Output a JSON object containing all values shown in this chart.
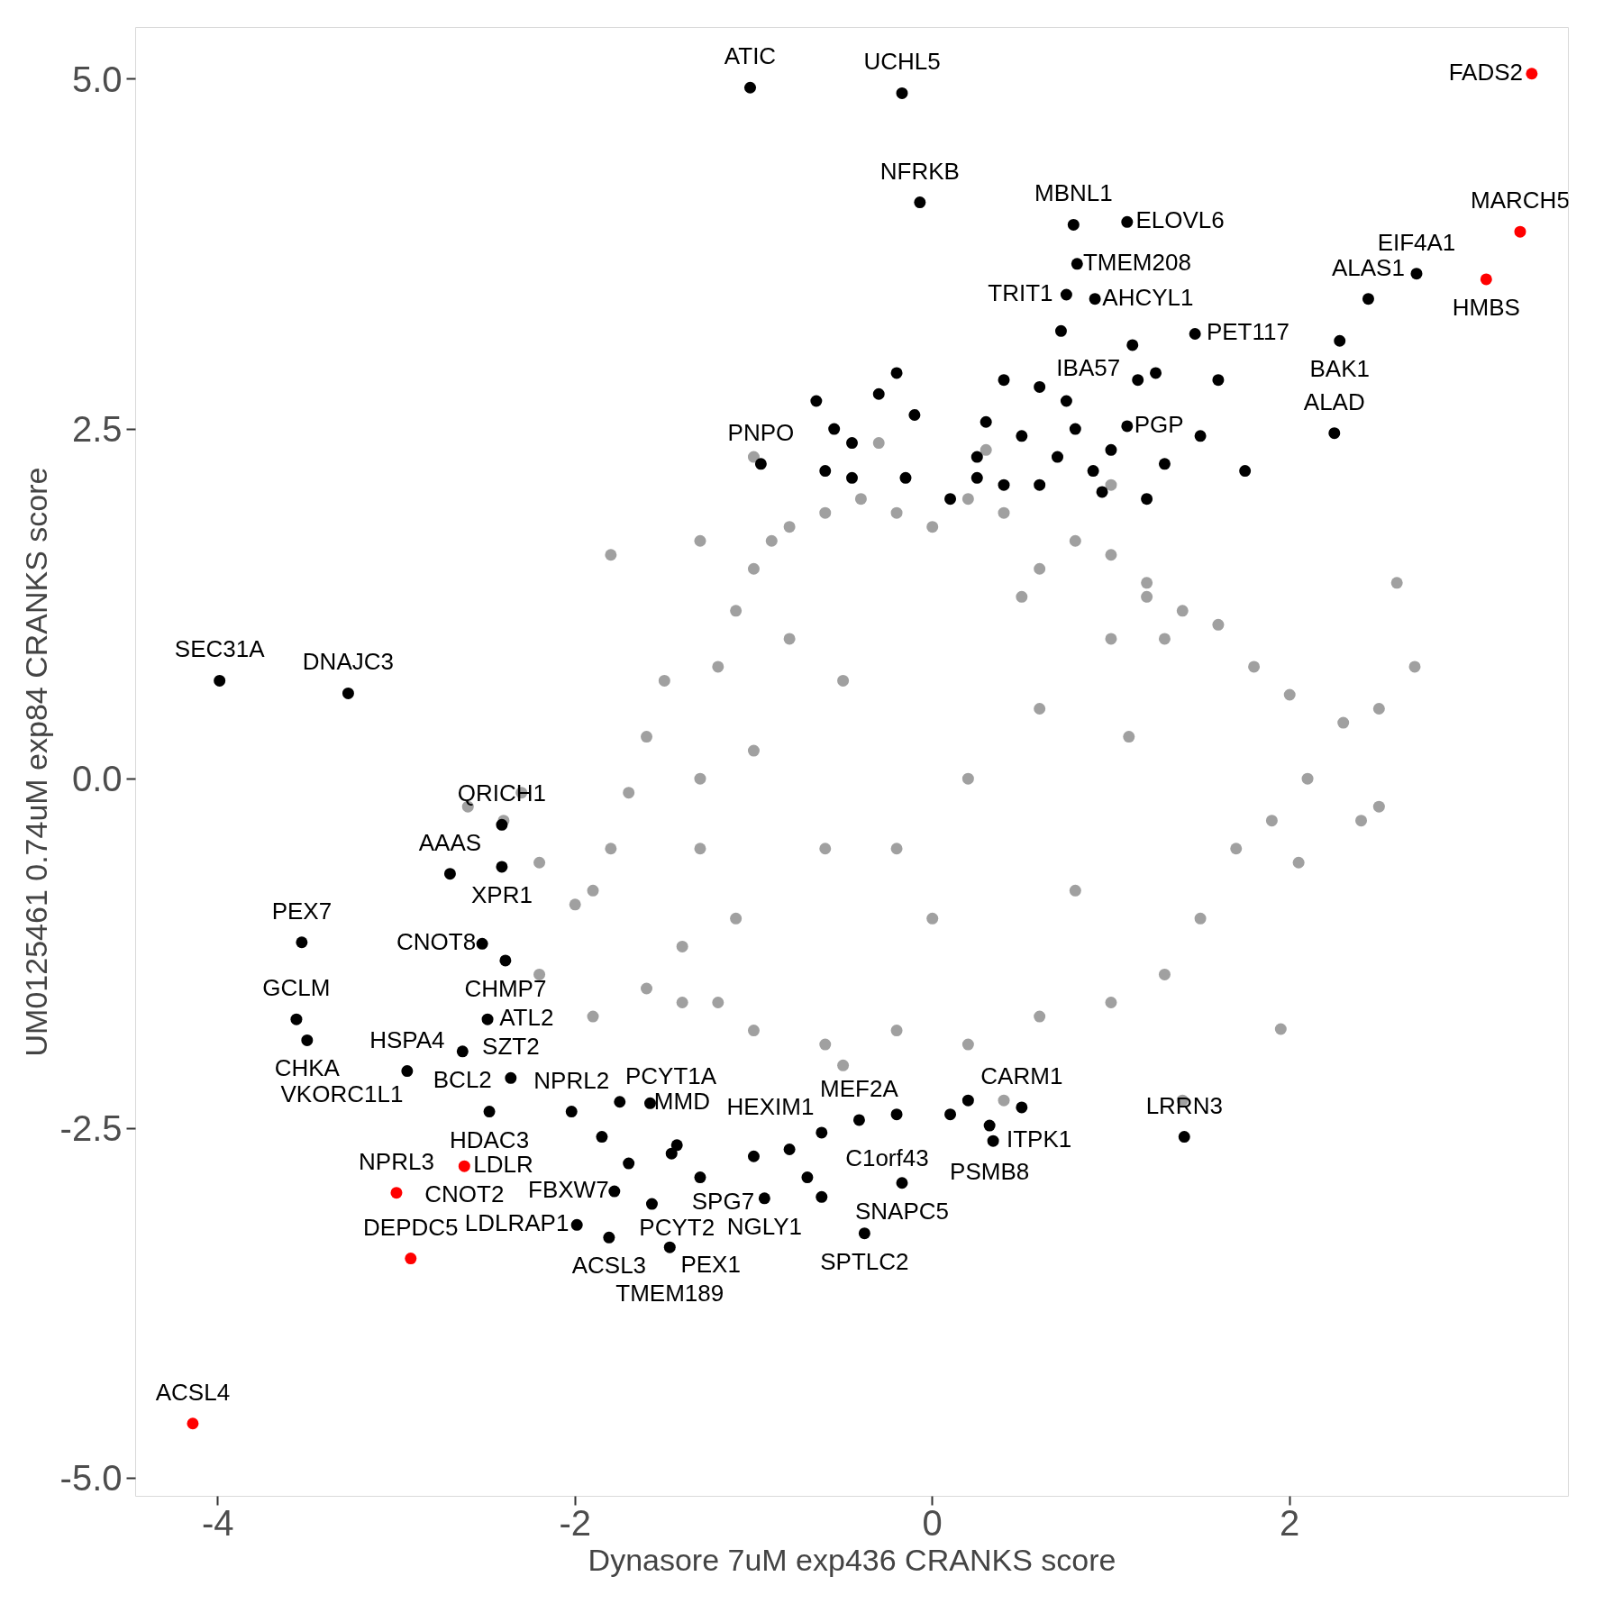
{
  "chart_data": {
    "type": "scatter",
    "xlabel": "Dynasore 7uM exp436 CRANKS score",
    "ylabel": "UM0125461 0.74uM exp84 CRANKS score",
    "xlim": [
      -4.46,
      3.56
    ],
    "ylim": [
      -5.13,
      5.37
    ],
    "xticks": [
      -4,
      -2,
      0,
      2
    ],
    "yticks": [
      {
        "value": 5,
        "label": "5.0"
      },
      {
        "value": 2.5,
        "label": "2.5"
      },
      {
        "value": 0,
        "label": "0.0"
      },
      {
        "value": -2.5,
        "label": "-2.5"
      },
      {
        "value": -5,
        "label": "-5.0"
      }
    ],
    "grid": false,
    "marker": "circle",
    "series": [
      {
        "color": "#a0a0a0",
        "x": [
          -1.3,
          -1.2,
          -1.1,
          -1.0,
          -0.9,
          -0.8,
          -0.6,
          -0.4,
          -0.2,
          0.0,
          0.2,
          0.4,
          0.6,
          0.8,
          1.0,
          1.2,
          1.3,
          -1.5,
          -1.6,
          -1.7,
          -1.8,
          -1.9,
          -2.0,
          -2.2,
          -2.4,
          -2.6,
          -1.4,
          -1.6,
          -1.2,
          -1.0,
          -0.6,
          -0.2,
          0.2,
          0.6,
          1.0,
          1.3,
          1.5,
          1.7,
          1.9,
          2.1,
          2.3,
          2.5,
          2.7,
          2.4,
          2.0,
          1.8,
          1.6,
          1.4,
          1.2,
          1.0,
          0.6,
          0.2,
          -0.2,
          -0.6,
          -1.0,
          -1.3,
          -0.8,
          0.0,
          0.8,
          1.1,
          -1.1,
          0.5,
          -0.5,
          -1.4,
          -2.2,
          1.95,
          2.5,
          2.05,
          1.0,
          -1.0,
          -0.3,
          0.3,
          -1.8,
          -1.3,
          0.4,
          1.4,
          -0.5,
          -2.3,
          -1.9,
          2.6
        ],
        "values": [
          0.0,
          0.8,
          1.2,
          1.5,
          1.7,
          1.8,
          1.9,
          2.0,
          1.9,
          1.8,
          2.0,
          1.9,
          1.5,
          1.7,
          1.6,
          1.4,
          1.0,
          0.7,
          0.3,
          -0.1,
          -0.5,
          -0.8,
          -0.9,
          -0.6,
          -0.3,
          -0.2,
          -1.2,
          -1.5,
          -1.6,
          -1.8,
          -1.9,
          -1.8,
          -1.9,
          -1.7,
          -1.6,
          -1.4,
          -1.0,
          -0.5,
          -0.3,
          0.0,
          0.4,
          0.5,
          0.8,
          -0.3,
          0.6,
          0.8,
          1.1,
          1.2,
          1.3,
          1.0,
          0.5,
          0.0,
          -0.5,
          -0.5,
          0.2,
          -0.5,
          1.0,
          -1.0,
          -0.8,
          0.3,
          -1.0,
          1.3,
          0.7,
          -1.6,
          -1.4,
          -1.79,
          -0.2,
          -0.6,
          2.1,
          2.3,
          2.4,
          2.35,
          1.6,
          1.7,
          -2.3,
          -2.3,
          -2.05,
          -0.1,
          -1.7,
          1.4
        ]
      },
      {
        "color": "#000000",
        "x": [
          -1.02,
          -0.17,
          -0.07,
          0.79,
          1.09,
          0.81,
          0.75,
          0.91,
          1.47,
          2.71,
          2.44,
          2.28,
          1.12,
          1.09,
          2.25,
          -0.96,
          -3.99,
          -3.27,
          -2.41,
          -2.41,
          -2.7,
          -3.53,
          -2.52,
          -2.39,
          -2.49,
          -3.56,
          -3.5,
          -2.63,
          -2.94,
          -2.48,
          -2.36,
          -2.02,
          -1.75,
          -1.58,
          -1.43,
          -1.46,
          -1.78,
          -1.85,
          -1.99,
          -1.81,
          -1.57,
          -1.47,
          -0.94,
          -0.62,
          -0.38,
          -0.17,
          -0.62,
          -0.41,
          0.5,
          0.32,
          0.34,
          1.41,
          -0.65,
          -0.55,
          -0.45,
          -0.3,
          -0.2,
          -0.1,
          0.25,
          0.3,
          0.4,
          0.5,
          0.6,
          0.7,
          0.8,
          0.9,
          1.0,
          1.2,
          1.3,
          1.5,
          1.75,
          1.6,
          -0.6,
          -0.45,
          0.1,
          0.4,
          0.6,
          0.95,
          1.25,
          1.15,
          0.75,
          0.25,
          -0.15,
          0.72,
          -1.3,
          -1.0,
          -0.8,
          -0.7,
          -0.2,
          0.1,
          0.2,
          -1.7
        ],
        "values": [
          4.94,
          4.9,
          4.12,
          3.96,
          3.98,
          3.68,
          3.46,
          3.43,
          3.18,
          3.61,
          3.43,
          3.13,
          3.1,
          2.52,
          2.47,
          2.25,
          0.7,
          0.61,
          -0.33,
          -0.63,
          -0.68,
          -1.17,
          -1.18,
          -1.3,
          -1.72,
          -1.72,
          -1.87,
          -1.95,
          -2.09,
          -2.38,
          -2.14,
          -2.38,
          -2.31,
          -2.32,
          -2.62,
          -2.68,
          -2.95,
          -2.56,
          -3.19,
          -3.28,
          -3.04,
          -3.35,
          -3.0,
          -2.99,
          -3.25,
          -2.89,
          -2.53,
          -2.44,
          -2.35,
          -2.48,
          -2.59,
          -2.56,
          2.7,
          2.5,
          2.4,
          2.75,
          2.9,
          2.6,
          2.3,
          2.55,
          2.85,
          2.45,
          2.8,
          2.3,
          2.5,
          2.2,
          2.35,
          2.0,
          2.25,
          2.45,
          2.2,
          2.85,
          2.2,
          2.15,
          2.0,
          2.1,
          2.1,
          2.05,
          2.9,
          2.85,
          2.7,
          2.15,
          2.15,
          3.2,
          -2.85,
          -2.7,
          -2.65,
          -2.85,
          -2.4,
          -2.4,
          -2.3,
          -2.75
        ]
      },
      {
        "color": "#ff0000",
        "x": [
          3.355,
          3.29,
          3.1,
          -2.62,
          -3.0,
          -2.92,
          -4.14
        ],
        "values": [
          5.04,
          3.91,
          3.57,
          -2.77,
          -2.96,
          -3.43,
          -4.61
        ]
      }
    ],
    "annotations": [
      {
        "text": "ATIC",
        "x": -1.02,
        "y": 4.94
      },
      {
        "text": "UCHL5",
        "x": -0.17,
        "y": 4.9
      },
      {
        "text": "NFRKB",
        "x": -0.07,
        "y": 4.12
      },
      {
        "text": "MBNL1",
        "x": 0.79,
        "y": 3.96
      },
      {
        "text": "ELOVL6",
        "x": 1.09,
        "y": 3.98
      },
      {
        "text": "TMEM208",
        "x": 0.81,
        "y": 3.68
      },
      {
        "text": "TRIT1",
        "x": 0.75,
        "y": 3.46
      },
      {
        "text": "AHCYL1",
        "x": 0.91,
        "y": 3.43
      },
      {
        "text": "PET117",
        "x": 1.47,
        "y": 3.18
      },
      {
        "text": "EIF4A1",
        "x": 2.71,
        "y": 3.61
      },
      {
        "text": "ALAS1",
        "x": 2.44,
        "y": 3.43
      },
      {
        "text": "BAK1",
        "x": 2.28,
        "y": 3.13
      },
      {
        "text": "IBA57",
        "x": 1.12,
        "y": 3.1
      },
      {
        "text": "PGP",
        "x": 1.09,
        "y": 2.52
      },
      {
        "text": "ALAD",
        "x": 2.25,
        "y": 2.47
      },
      {
        "text": "PNPO",
        "x": -0.96,
        "y": 2.25
      },
      {
        "text": "SEC31A",
        "x": -3.99,
        "y": 0.7
      },
      {
        "text": "DNAJC3",
        "x": -3.27,
        "y": 0.61
      },
      {
        "text": "QRICH1",
        "x": -2.41,
        "y": -0.33
      },
      {
        "text": "XPR1",
        "x": -2.41,
        "y": -0.63
      },
      {
        "text": "AAAS",
        "x": -2.7,
        "y": -0.68
      },
      {
        "text": "PEX7",
        "x": -3.53,
        "y": -1.17
      },
      {
        "text": "CNOT8",
        "x": -2.52,
        "y": -1.18
      },
      {
        "text": "CHMP7",
        "x": -2.39,
        "y": -1.3
      },
      {
        "text": "ATL2",
        "x": -2.49,
        "y": -1.72
      },
      {
        "text": "GCLM",
        "x": -3.56,
        "y": -1.72
      },
      {
        "text": "CHKA",
        "x": -3.5,
        "y": -1.87
      },
      {
        "text": "BCL2",
        "x": -2.63,
        "y": -1.95
      },
      {
        "text": "HSPA4",
        "x": -2.94,
        "y": -2.09
      },
      {
        "text": "VKORC1L1",
        "x": -2.94,
        "y": -2.09
      },
      {
        "text": "HDAC3",
        "x": -2.48,
        "y": -2.38
      },
      {
        "text": "SZT2",
        "x": -2.36,
        "y": -2.14
      },
      {
        "text": "NPRL2",
        "x": -2.02,
        "y": -2.38
      },
      {
        "text": "PCYT1A",
        "x": -1.75,
        "y": -2.31
      },
      {
        "text": "MMD",
        "x": -1.58,
        "y": -2.32
      },
      {
        "text": "PCYT2",
        "x": -1.43,
        "y": -2.62
      },
      {
        "text": "SPG7",
        "x": -1.46,
        "y": -2.68
      },
      {
        "text": "FBXW7",
        "x": -1.78,
        "y": -2.95
      },
      {
        "text": "CNOT2",
        "x": -2.62,
        "y": -2.77
      },
      {
        "text": "LDLRAP1",
        "x": -1.99,
        "y": -3.19
      },
      {
        "text": "ACSL3",
        "x": -1.81,
        "y": -3.28
      },
      {
        "text": "PEX1",
        "x": -1.57,
        "y": -3.04
      },
      {
        "text": "TMEM189",
        "x": -1.47,
        "y": -3.35
      },
      {
        "text": "NGLY1",
        "x": -0.94,
        "y": -3.0
      },
      {
        "text": "C1orf43",
        "x": -0.62,
        "y": -2.99
      },
      {
        "text": "SPTLC2",
        "x": -0.38,
        "y": -3.25
      },
      {
        "text": "SNAPC5",
        "x": -0.17,
        "y": -2.89
      },
      {
        "text": "HEXIM1",
        "x": -0.62,
        "y": -2.53
      },
      {
        "text": "MEF2A",
        "x": -0.41,
        "y": -2.44
      },
      {
        "text": "CARM1",
        "x": 0.5,
        "y": -2.35
      },
      {
        "text": "PSMB8",
        "x": 0.32,
        "y": -2.48
      },
      {
        "text": "ITPK1",
        "x": 0.34,
        "y": -2.59
      },
      {
        "text": "LRRN3",
        "x": 1.41,
        "y": -2.56
      },
      {
        "text": "FADS2",
        "x": 3.355,
        "y": 5.04
      },
      {
        "text": "MARCH5",
        "x": 3.29,
        "y": 3.91
      },
      {
        "text": "HMBS",
        "x": 3.1,
        "y": 3.57
      },
      {
        "text": "LDLR",
        "x": -2.62,
        "y": -2.77
      },
      {
        "text": "NPRL3",
        "x": -3.0,
        "y": -2.96
      },
      {
        "text": "DEPDC5",
        "x": -2.92,
        "y": -3.43
      },
      {
        "text": "ACSL4",
        "x": -4.14,
        "y": -4.61
      }
    ]
  }
}
